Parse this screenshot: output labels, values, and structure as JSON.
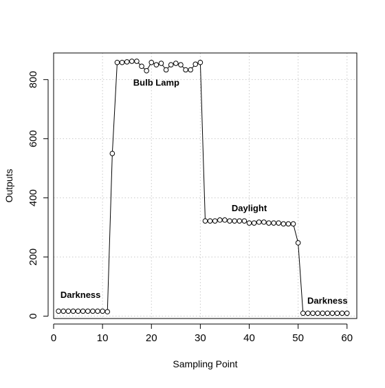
{
  "chart_data": {
    "type": "line",
    "title": "",
    "xlabel": "Sampling Point",
    "ylabel": "Outputs",
    "xlim": [
      0,
      62
    ],
    "ylim": [
      -8,
      890
    ],
    "grid": true,
    "x_ticks": [
      0,
      10,
      20,
      30,
      40,
      50,
      60
    ],
    "y_ticks": [
      0,
      200,
      400,
      600,
      800
    ],
    "series": [
      {
        "x": [
          1,
          2,
          3,
          4,
          5,
          6,
          7,
          8,
          9,
          10,
          11,
          12,
          13,
          14,
          15,
          16,
          17,
          18,
          19,
          20,
          21,
          22,
          23,
          24,
          25,
          26,
          27,
          28,
          29,
          30,
          31,
          32,
          33,
          34,
          35,
          36,
          37,
          38,
          39,
          40,
          41,
          42,
          43,
          44,
          45,
          46,
          47,
          48,
          49,
          50,
          51,
          52,
          53,
          54,
          55,
          56,
          57,
          58,
          59,
          60
        ],
        "values": [
          17,
          17,
          17,
          17,
          17,
          17,
          17,
          17,
          17,
          17,
          15,
          550,
          858,
          858,
          860,
          862,
          862,
          845,
          830,
          858,
          850,
          855,
          833,
          850,
          855,
          850,
          833,
          833,
          852,
          858,
          322,
          322,
          322,
          325,
          325,
          322,
          322,
          322,
          322,
          315,
          315,
          318,
          318,
          315,
          315,
          315,
          312,
          312,
          312,
          248,
          10,
          10,
          10,
          10,
          10,
          10,
          10,
          10,
          10,
          10
        ]
      }
    ],
    "annotations": [
      {
        "text": "Darkness",
        "x": 5.5,
        "y": 62
      },
      {
        "text": "Bulb Lamp",
        "x": 21,
        "y": 780
      },
      {
        "text": "Daylight",
        "x": 40,
        "y": 355
      },
      {
        "text": "Darkness",
        "x": 56,
        "y": 42
      }
    ]
  }
}
